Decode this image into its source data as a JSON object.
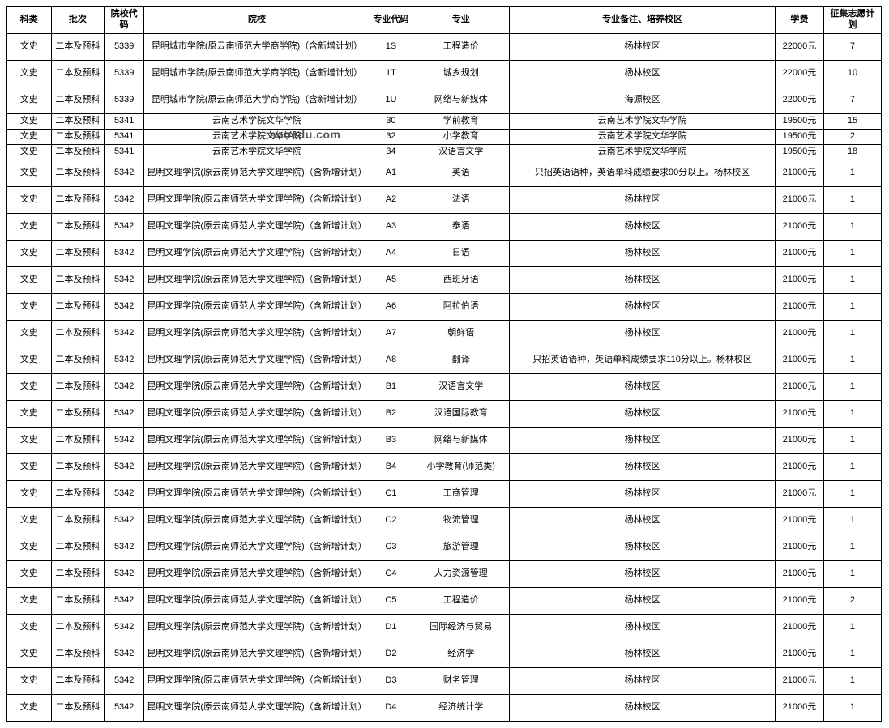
{
  "watermark": "aooedu.com",
  "columns": [
    "科类",
    "批次",
    "院校代码",
    "院校",
    "专业代码",
    "专业",
    "专业备注、培养校区",
    "学费",
    "征集志愿计划"
  ],
  "rows": [
    {
      "k": "文史",
      "p": "二本及预科",
      "code": "5339",
      "school": "昆明城市学院(原云南师范大学商学院)（含新增计划）",
      "mcode": "1S",
      "major": "工程造价",
      "note": "杨林校区",
      "fee": "22000元",
      "plan": "7",
      "h": "tall"
    },
    {
      "k": "文史",
      "p": "二本及预科",
      "code": "5339",
      "school": "昆明城市学院(原云南师范大学商学院)（含新增计划）",
      "mcode": "1T",
      "major": "城乡规划",
      "note": "杨林校区",
      "fee": "22000元",
      "plan": "10",
      "h": "tall"
    },
    {
      "k": "文史",
      "p": "二本及预科",
      "code": "5339",
      "school": "昆明城市学院(原云南师范大学商学院)（含新增计划）",
      "mcode": "1U",
      "major": "网络与新媒体",
      "note": "海源校区",
      "fee": "22000元",
      "plan": "7",
      "h": "tall"
    },
    {
      "k": "文史",
      "p": "二本及预科",
      "code": "5341",
      "school": "云南艺术学院文华学院",
      "mcode": "30",
      "major": "学前教育",
      "note": "云南艺术学院文华学院",
      "fee": "19500元",
      "plan": "15",
      "h": "short"
    },
    {
      "k": "文史",
      "p": "二本及预科",
      "code": "5341",
      "school": "云南艺术学院文华学院",
      "mcode": "32",
      "major": "小学教育",
      "note": "云南艺术学院文华学院",
      "fee": "19500元",
      "plan": "2",
      "h": "short"
    },
    {
      "k": "文史",
      "p": "二本及预科",
      "code": "5341",
      "school": "云南艺术学院文华学院",
      "mcode": "34",
      "major": "汉语言文学",
      "note": "云南艺术学院文华学院",
      "fee": "19500元",
      "plan": "18",
      "h": "short"
    },
    {
      "k": "文史",
      "p": "二本及预科",
      "code": "5342",
      "school": "昆明文理学院(原云南师范大学文理学院)（含新增计划）",
      "mcode": "A1",
      "major": "英语",
      "note": "只招英语语种，英语单科成绩要求90分以上。杨林校区",
      "fee": "21000元",
      "plan": "1",
      "h": "tall"
    },
    {
      "k": "文史",
      "p": "二本及预科",
      "code": "5342",
      "school": "昆明文理学院(原云南师范大学文理学院)（含新增计划）",
      "mcode": "A2",
      "major": "法语",
      "note": "杨林校区",
      "fee": "21000元",
      "plan": "1",
      "h": "tall"
    },
    {
      "k": "文史",
      "p": "二本及预科",
      "code": "5342",
      "school": "昆明文理学院(原云南师范大学文理学院)（含新增计划）",
      "mcode": "A3",
      "major": "泰语",
      "note": "杨林校区",
      "fee": "21000元",
      "plan": "1",
      "h": "tall"
    },
    {
      "k": "文史",
      "p": "二本及预科",
      "code": "5342",
      "school": "昆明文理学院(原云南师范大学文理学院)（含新增计划）",
      "mcode": "A4",
      "major": "日语",
      "note": "杨林校区",
      "fee": "21000元",
      "plan": "1",
      "h": "tall"
    },
    {
      "k": "文史",
      "p": "二本及预科",
      "code": "5342",
      "school": "昆明文理学院(原云南师范大学文理学院)（含新增计划）",
      "mcode": "A5",
      "major": "西班牙语",
      "note": "杨林校区",
      "fee": "21000元",
      "plan": "1",
      "h": "tall"
    },
    {
      "k": "文史",
      "p": "二本及预科",
      "code": "5342",
      "school": "昆明文理学院(原云南师范大学文理学院)（含新增计划）",
      "mcode": "A6",
      "major": "阿拉伯语",
      "note": "杨林校区",
      "fee": "21000元",
      "plan": "1",
      "h": "tall"
    },
    {
      "k": "文史",
      "p": "二本及预科",
      "code": "5342",
      "school": "昆明文理学院(原云南师范大学文理学院)（含新增计划）",
      "mcode": "A7",
      "major": "朝鲜语",
      "note": "杨林校区",
      "fee": "21000元",
      "plan": "1",
      "h": "tall"
    },
    {
      "k": "文史",
      "p": "二本及预科",
      "code": "5342",
      "school": "昆明文理学院(原云南师范大学文理学院)（含新增计划）",
      "mcode": "A8",
      "major": "翻译",
      "note": "只招英语语种，英语单科成绩要求110分以上。杨林校区",
      "fee": "21000元",
      "plan": "1",
      "h": "tall"
    },
    {
      "k": "文史",
      "p": "二本及预科",
      "code": "5342",
      "school": "昆明文理学院(原云南师范大学文理学院)（含新增计划）",
      "mcode": "B1",
      "major": "汉语言文学",
      "note": "杨林校区",
      "fee": "21000元",
      "plan": "1",
      "h": "tall"
    },
    {
      "k": "文史",
      "p": "二本及预科",
      "code": "5342",
      "school": "昆明文理学院(原云南师范大学文理学院)（含新增计划）",
      "mcode": "B2",
      "major": "汉语国际教育",
      "note": "杨林校区",
      "fee": "21000元",
      "plan": "1",
      "h": "tall"
    },
    {
      "k": "文史",
      "p": "二本及预科",
      "code": "5342",
      "school": "昆明文理学院(原云南师范大学文理学院)（含新增计划）",
      "mcode": "B3",
      "major": "网络与新媒体",
      "note": "杨林校区",
      "fee": "21000元",
      "plan": "1",
      "h": "tall"
    },
    {
      "k": "文史",
      "p": "二本及预科",
      "code": "5342",
      "school": "昆明文理学院(原云南师范大学文理学院)（含新增计划）",
      "mcode": "B4",
      "major": "小学教育(师范类)",
      "note": "杨林校区",
      "fee": "21000元",
      "plan": "1",
      "h": "tall"
    },
    {
      "k": "文史",
      "p": "二本及预科",
      "code": "5342",
      "school": "昆明文理学院(原云南师范大学文理学院)（含新增计划）",
      "mcode": "C1",
      "major": "工商管理",
      "note": "杨林校区",
      "fee": "21000元",
      "plan": "1",
      "h": "tall"
    },
    {
      "k": "文史",
      "p": "二本及预科",
      "code": "5342",
      "school": "昆明文理学院(原云南师范大学文理学院)（含新增计划）",
      "mcode": "C2",
      "major": "物流管理",
      "note": "杨林校区",
      "fee": "21000元",
      "plan": "1",
      "h": "tall"
    },
    {
      "k": "文史",
      "p": "二本及预科",
      "code": "5342",
      "school": "昆明文理学院(原云南师范大学文理学院)（含新增计划）",
      "mcode": "C3",
      "major": "旅游管理",
      "note": "杨林校区",
      "fee": "21000元",
      "plan": "1",
      "h": "tall"
    },
    {
      "k": "文史",
      "p": "二本及预科",
      "code": "5342",
      "school": "昆明文理学院(原云南师范大学文理学院)（含新增计划）",
      "mcode": "C4",
      "major": "人力资源管理",
      "note": "杨林校区",
      "fee": "21000元",
      "plan": "1",
      "h": "tall"
    },
    {
      "k": "文史",
      "p": "二本及预科",
      "code": "5342",
      "school": "昆明文理学院(原云南师范大学文理学院)（含新增计划）",
      "mcode": "C5",
      "major": "工程造价",
      "note": "杨林校区",
      "fee": "21000元",
      "plan": "2",
      "h": "tall"
    },
    {
      "k": "文史",
      "p": "二本及预科",
      "code": "5342",
      "school": "昆明文理学院(原云南师范大学文理学院)（含新增计划）",
      "mcode": "D1",
      "major": "国际经济与贸易",
      "note": "杨林校区",
      "fee": "21000元",
      "plan": "1",
      "h": "tall"
    },
    {
      "k": "文史",
      "p": "二本及预科",
      "code": "5342",
      "school": "昆明文理学院(原云南师范大学文理学院)（含新增计划）",
      "mcode": "D2",
      "major": "经济学",
      "note": "杨林校区",
      "fee": "21000元",
      "plan": "1",
      "h": "tall"
    },
    {
      "k": "文史",
      "p": "二本及预科",
      "code": "5342",
      "school": "昆明文理学院(原云南师范大学文理学院)（含新增计划）",
      "mcode": "D3",
      "major": "财务管理",
      "note": "杨林校区",
      "fee": "21000元",
      "plan": "1",
      "h": "tall"
    },
    {
      "k": "文史",
      "p": "二本及预科",
      "code": "5342",
      "school": "昆明文理学院(原云南师范大学文理学院)（含新增计划）",
      "mcode": "D4",
      "major": "经济统计学",
      "note": "杨林校区",
      "fee": "21000元",
      "plan": "1",
      "h": "tall"
    }
  ]
}
